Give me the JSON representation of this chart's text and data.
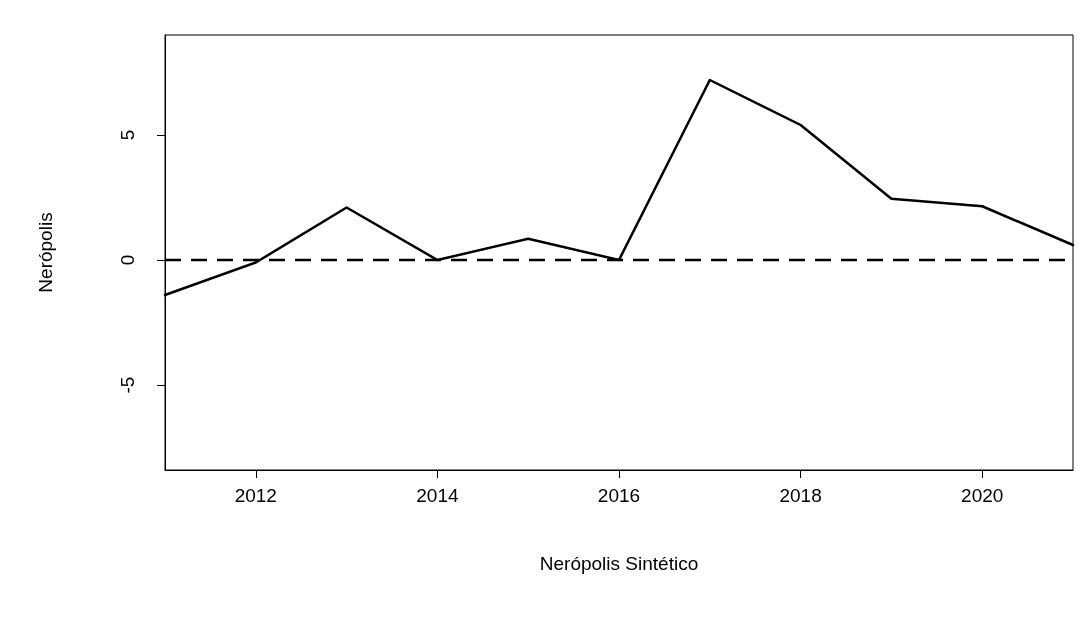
{
  "chart_data": {
    "type": "line",
    "xlabel": "Nerópolis Sintético",
    "ylabel": "Nerópolis",
    "x": [
      2011,
      2012,
      2013,
      2014,
      2015,
      2016,
      2017,
      2018,
      2019,
      2020,
      2021
    ],
    "series": [
      {
        "color": "#000000",
        "values": [
          -1.4,
          -0.1,
          2.1,
          0,
          0.85,
          0,
          7.2,
          5.4,
          2.45,
          2.15,
          0.6
        ]
      }
    ],
    "xlim": [
      2011,
      2021
    ],
    "xticks": [
      2012,
      2014,
      2016,
      2018,
      2020
    ],
    "ylim": [
      -8.4,
      9
    ],
    "yticks": [
      -5,
      0,
      5
    ],
    "ref_lines": [
      {
        "axis": "y",
        "value": 0,
        "color": "#000000",
        "line_style": "dashed"
      }
    ],
    "grid": false,
    "marker": "none",
    "line_style": "solid"
  }
}
